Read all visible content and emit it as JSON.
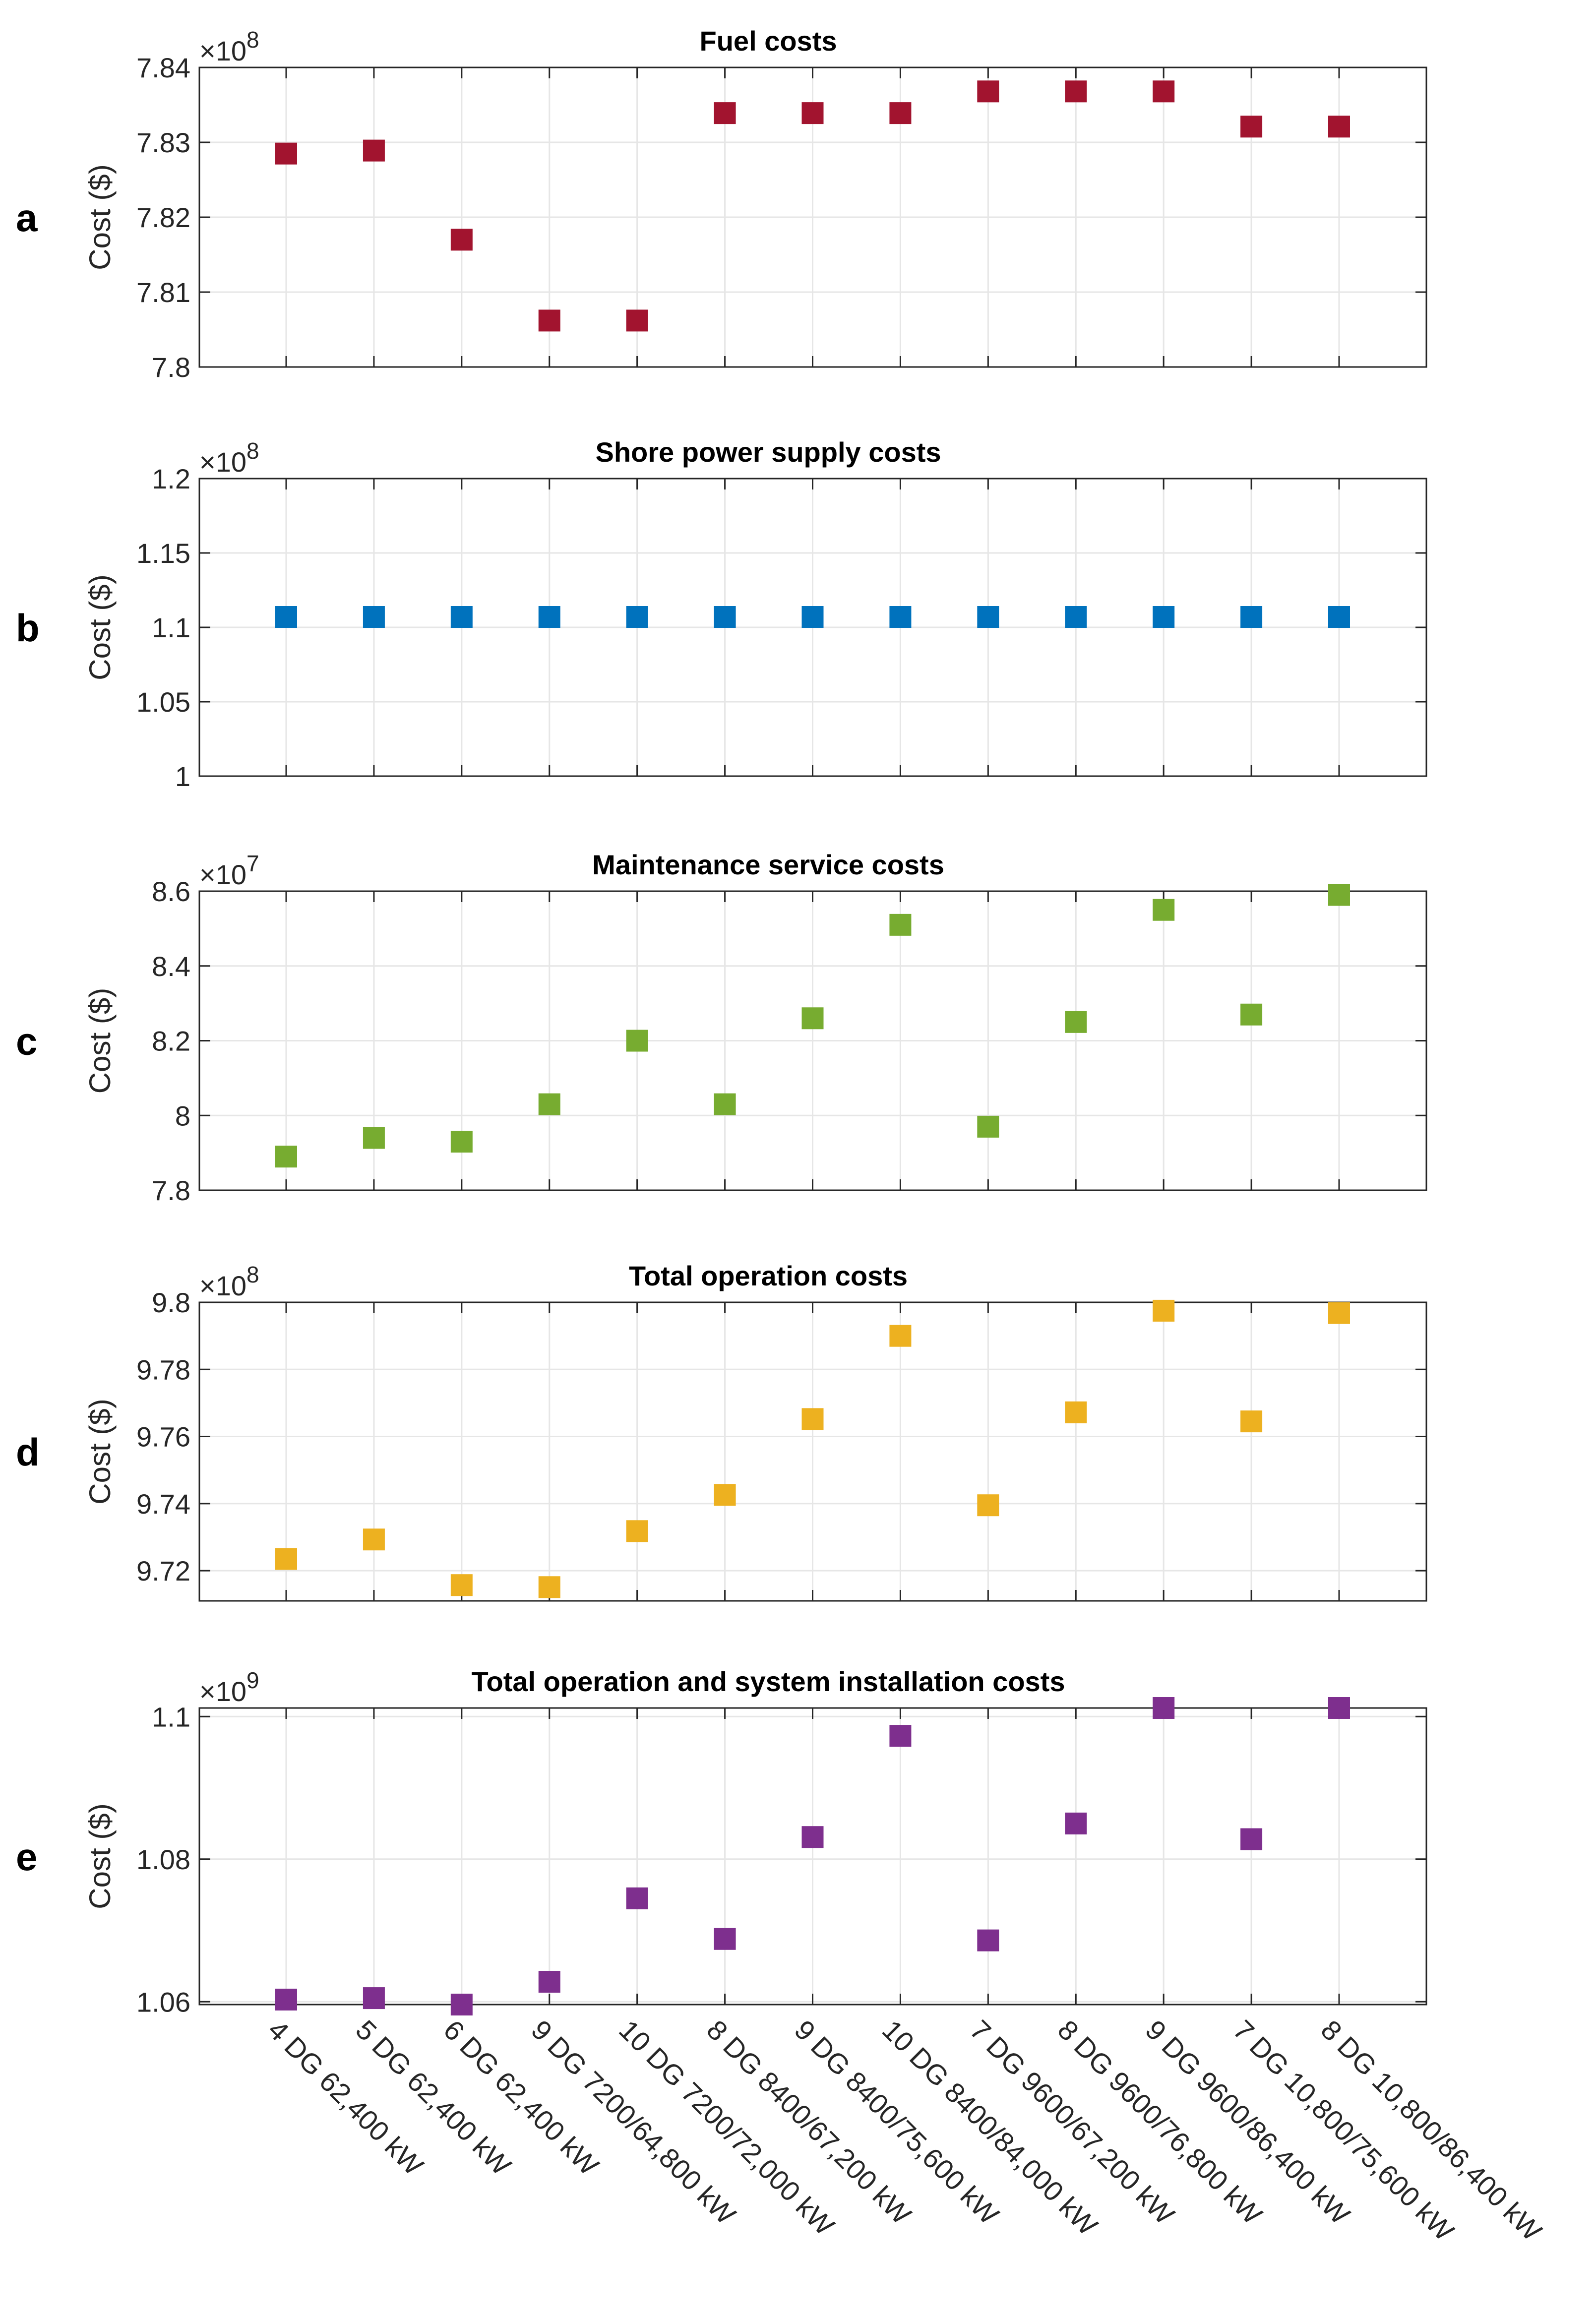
{
  "chart_data": [
    {
      "type": "scatter",
      "panel": "a",
      "title": "Fuel costs",
      "ylabel": "Cost ($)",
      "exponent_label": "×10",
      "exponent_power": "8",
      "ylim": [
        7.8,
        7.84
      ],
      "yticks": [
        7.8,
        7.81,
        7.82,
        7.83,
        7.84
      ],
      "ytick_labels": [
        "7.8",
        "7.81",
        "7.82",
        "7.83",
        "7.84"
      ],
      "color": "#A2142F",
      "values": [
        7.8285,
        7.8289,
        7.817,
        7.8062,
        7.8062,
        7.8339,
        7.8339,
        7.8339,
        7.8368,
        7.8368,
        7.8368,
        7.8321,
        7.8321
      ]
    },
    {
      "type": "scatter",
      "panel": "b",
      "title": "Shore power supply costs",
      "ylabel": "Cost ($)",
      "exponent_label": "×10",
      "exponent_power": "8",
      "ylim": [
        1.0,
        1.2
      ],
      "yticks": [
        1.0,
        1.05,
        1.1,
        1.15,
        1.2
      ],
      "ytick_labels": [
        "1",
        "1.05",
        "1.1",
        "1.15",
        "1.2"
      ],
      "color": "#0072BD",
      "values": [
        1.107,
        1.107,
        1.107,
        1.107,
        1.107,
        1.107,
        1.107,
        1.107,
        1.107,
        1.107,
        1.107,
        1.107,
        1.107
      ]
    },
    {
      "type": "scatter",
      "panel": "c",
      "title": "Maintenance service costs",
      "ylabel": "Cost ($)",
      "exponent_label": "×10",
      "exponent_power": "7",
      "ylim": [
        7.8,
        8.6
      ],
      "yticks": [
        7.8,
        8.0,
        8.2,
        8.4,
        8.6
      ],
      "ytick_labels": [
        "7.8",
        "8",
        "8.2",
        "8.4",
        "8.6"
      ],
      "color": "#77AC30",
      "values": [
        7.89,
        7.94,
        7.93,
        8.03,
        8.2,
        8.03,
        8.26,
        8.51,
        7.97,
        8.25,
        8.55,
        8.27,
        8.59
      ]
    },
    {
      "type": "scatter",
      "panel": "d",
      "title": "Total operation costs",
      "ylabel": "Cost ($)",
      "exponent_label": "×10",
      "exponent_power": "8",
      "ylim": [
        9.711,
        9.8
      ],
      "yticks": [
        9.72,
        9.74,
        9.76,
        9.78,
        9.8
      ],
      "ytick_labels": [
        "9.72",
        "9.74",
        "9.76",
        "9.78",
        "9.8"
      ],
      "color": "#EDB120",
      "values": [
        9.7235,
        9.7293,
        9.7157,
        9.7151,
        9.7318,
        9.7426,
        9.7652,
        9.79,
        9.7395,
        9.7672,
        9.7975,
        9.7645,
        9.7968
      ]
    },
    {
      "type": "scatter",
      "panel": "e",
      "title": "Total operation and system installation costs",
      "ylabel": "Cost ($)",
      "exponent_label": "×10",
      "exponent_power": "9",
      "ylim": [
        1.0596,
        1.1012
      ],
      "yticks": [
        1.06,
        1.08,
        1.1
      ],
      "ytick_labels": [
        "1.06",
        "1.08",
        "1.1"
      ],
      "color": "#7E2F8E",
      "values": [
        1.0603,
        1.0605,
        1.0596,
        1.0628,
        1.0745,
        1.0688,
        1.0831,
        1.0973,
        1.0686,
        1.085,
        1.1012,
        1.0828,
        1.1012
      ]
    }
  ],
  "categories": [
    "4 DG 62,400 kW",
    "5 DG 62,400 kW",
    "6 DG 62,400 kW",
    "9 DG 7200/64,800 kW",
    "10 DG 7200/72,000 kW",
    "8 DG 8400/67,200 kW",
    "9 DG 8400/75,600 kW",
    "10 DG 8400/84,000 kW",
    "7 DG 9600/67,200 kW",
    "8 DG 9600/76,800 kW",
    "9 DG 9600/86,400 kW",
    "7 DG 10,800/75,600 kW",
    "8 DG 10,800/86,400 kW"
  ]
}
